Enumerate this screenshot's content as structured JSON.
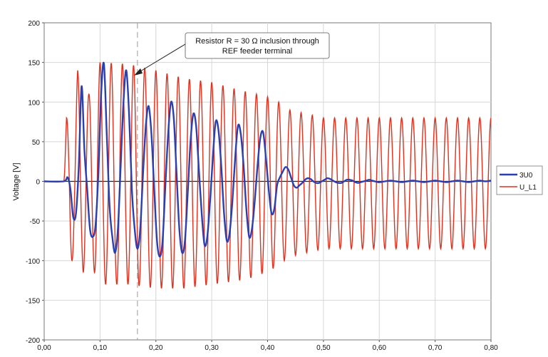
{
  "chart_data": {
    "type": "line",
    "title": "",
    "xlabel": "",
    "ylabel": "Voltage [V]",
    "xlim": [
      0.0,
      0.8
    ],
    "ylim": [
      -200,
      200
    ],
    "x_ticks": [
      "0,00",
      "0,10",
      "0,20",
      "0,30",
      "0,40",
      "0,50",
      "0,60",
      "0,70",
      "0,80"
    ],
    "y_ticks": [
      "200",
      "150",
      "100",
      "50",
      "0",
      "-50",
      "-100",
      "-150",
      "-200"
    ],
    "x_tick_values": [
      0.0,
      0.1,
      0.2,
      0.3,
      0.4,
      0.5,
      0.6,
      0.7,
      0.8
    ],
    "y_tick_values": [
      200,
      150,
      100,
      50,
      0,
      -50,
      -100,
      -150,
      -200
    ],
    "grid": true,
    "legend_position": "right",
    "annotation": {
      "line1": "Resistor R = 30 Ω inclusion through",
      "line2": "REF feeder terminal",
      "marker_x": 0.167
    },
    "series": [
      {
        "name": "3U0",
        "color": "#2b3fb0",
        "x": [
          0.0,
          0.035,
          0.042,
          0.047,
          0.052,
          0.057,
          0.062,
          0.067,
          0.072,
          0.077,
          0.082,
          0.087,
          0.092,
          0.097,
          0.102,
          0.107,
          0.112,
          0.117,
          0.122,
          0.127,
          0.132,
          0.137,
          0.142,
          0.147,
          0.152,
          0.157,
          0.162,
          0.167,
          0.172,
          0.177,
          0.182,
          0.187,
          0.192,
          0.197,
          0.202,
          0.207,
          0.212,
          0.217,
          0.222,
          0.227,
          0.232,
          0.237,
          0.242,
          0.247,
          0.252,
          0.257,
          0.262,
          0.267,
          0.272,
          0.277,
          0.282,
          0.287,
          0.292,
          0.297,
          0.302,
          0.307,
          0.312,
          0.317,
          0.322,
          0.327,
          0.332,
          0.337,
          0.342,
          0.347,
          0.352,
          0.357,
          0.362,
          0.367,
          0.372,
          0.377,
          0.382,
          0.387,
          0.392,
          0.397,
          0.402,
          0.407,
          0.412,
          0.417,
          0.422,
          0.427,
          0.432,
          0.437,
          0.442,
          0.447,
          0.452,
          0.457,
          0.462,
          0.467,
          0.472,
          0.477,
          0.482,
          0.487,
          0.492,
          0.497,
          0.502,
          0.507,
          0.512,
          0.517,
          0.522,
          0.527,
          0.532,
          0.537,
          0.542,
          0.547,
          0.552,
          0.557,
          0.562,
          0.567,
          0.572,
          0.577,
          0.582,
          0.587,
          0.592,
          0.597,
          0.602,
          0.61,
          0.62,
          0.63,
          0.64,
          0.65,
          0.66,
          0.67,
          0.68,
          0.69,
          0.7,
          0.71,
          0.72,
          0.73,
          0.74,
          0.75,
          0.76,
          0.77,
          0.78,
          0.79,
          0.8
        ],
        "y": [
          0,
          0,
          5,
          -10,
          -45,
          -40,
          20,
          120,
          40,
          -10,
          -60,
          -70,
          -55,
          10,
          110,
          148,
          60,
          -30,
          -70,
          -90,
          -60,
          20,
          100,
          140,
          85,
          -10,
          -60,
          -85,
          -60,
          10,
          70,
          95,
          60,
          -10,
          -75,
          -95,
          -75,
          -5,
          60,
          100,
          80,
          10,
          -60,
          -90,
          -75,
          -15,
          50,
          85,
          70,
          15,
          -40,
          -80,
          -70,
          -25,
          30,
          75,
          65,
          20,
          -40,
          -75,
          -65,
          -25,
          30,
          70,
          60,
          20,
          -35,
          -70,
          -60,
          -25,
          20,
          55,
          62,
          30,
          -10,
          -40,
          -35,
          -5,
          5,
          12,
          18,
          15,
          5,
          -5,
          -8,
          -5,
          -2,
          2,
          4,
          3,
          0,
          -2,
          -2,
          0,
          2,
          4,
          3,
          1,
          -1,
          -2,
          -2,
          0,
          2,
          2,
          1,
          -1,
          -2,
          -1,
          0,
          1,
          2,
          1,
          0,
          -1,
          -1,
          0,
          1,
          0,
          -1,
          0,
          1,
          0,
          -1,
          0,
          1,
          0,
          -1,
          0,
          1,
          0,
          -1,
          0,
          1,
          0,
          1
        ]
      },
      {
        "name": "U_L1",
        "color": "#e0301e",
        "frequency_hz": 50,
        "x": [
          0.0,
          0.035,
          0.04,
          0.045,
          0.05,
          0.06,
          0.07,
          0.08,
          0.1,
          0.15,
          0.2,
          0.25,
          0.3,
          0.35,
          0.38,
          0.41,
          0.44,
          0.5,
          0.6,
          0.7,
          0.8
        ],
        "y_upper_envelope": [
          0,
          0,
          80,
          85,
          60,
          140,
          120,
          110,
          150,
          148,
          140,
          130,
          125,
          115,
          110,
          105,
          90,
          80,
          80,
          80,
          80
        ],
        "y_lower_envelope": [
          0,
          0,
          -80,
          -110,
          -100,
          -90,
          -115,
          -100,
          -130,
          -130,
          -135,
          -135,
          -130,
          -125,
          -120,
          -110,
          -95,
          -85,
          -85,
          -85,
          -85
        ]
      }
    ]
  }
}
